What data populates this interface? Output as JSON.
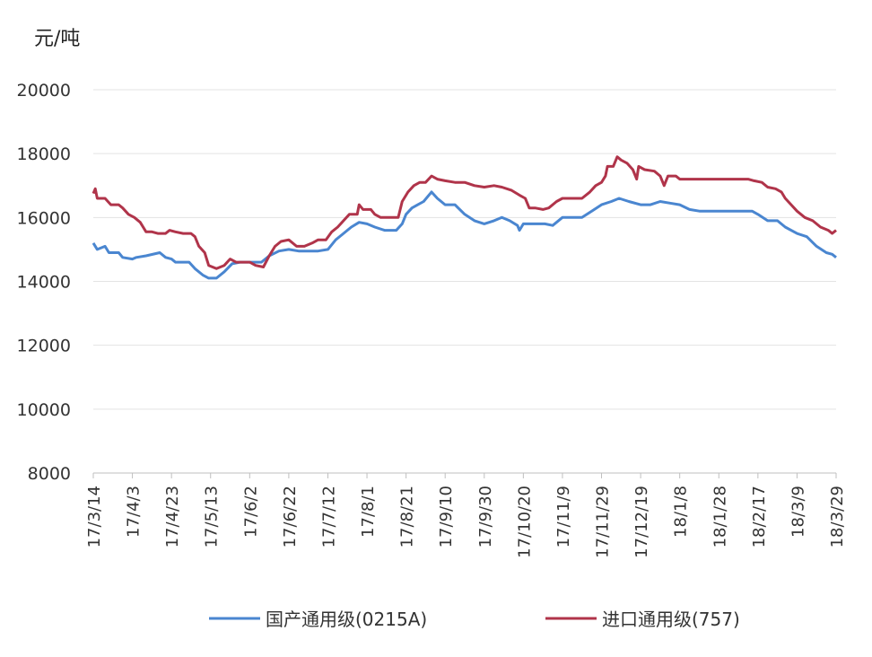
{
  "chart_data": {
    "type": "line",
    "unit_label": "元/吨",
    "ylim": [
      8000,
      20000
    ],
    "yticks": [
      8000,
      10000,
      12000,
      14000,
      16000,
      18000,
      20000
    ],
    "x_tick_labels": [
      "17/3/14",
      "17/4/3",
      "17/4/23",
      "17/5/13",
      "17/6/2",
      "17/6/22",
      "17/7/12",
      "17/8/1",
      "17/8/21",
      "17/9/10",
      "17/9/30",
      "17/10/20",
      "17/11/9",
      "17/11/29",
      "17/12/19",
      "18/1/8",
      "18/1/28",
      "18/2/17",
      "18/3/9",
      "18/3/29"
    ],
    "grid": "horizontal",
    "legend_position": "bottom",
    "series": [
      {
        "name": "国产通用级(0215A)",
        "color": "#4a86d0",
        "values": [
          [
            "17/3/14",
            15200
          ],
          [
            "17/3/16",
            15000
          ],
          [
            "17/3/20",
            15100
          ],
          [
            "17/3/22",
            14900
          ],
          [
            "17/3/27",
            14900
          ],
          [
            "17/3/29",
            14750
          ],
          [
            "17/4/3",
            14700
          ],
          [
            "17/4/5",
            14750
          ],
          [
            "17/4/10",
            14800
          ],
          [
            "17/4/17",
            14900
          ],
          [
            "17/4/20",
            14750
          ],
          [
            "17/4/23",
            14700
          ],
          [
            "17/4/25",
            14600
          ],
          [
            "17/4/29",
            14600
          ],
          [
            "17/5/2",
            14600
          ],
          [
            "17/5/5",
            14400
          ],
          [
            "17/5/9",
            14200
          ],
          [
            "17/5/12",
            14100
          ],
          [
            "17/5/16",
            14100
          ],
          [
            "17/5/20",
            14300
          ],
          [
            "17/5/24",
            14550
          ],
          [
            "17/5/28",
            14600
          ],
          [
            "17/6/2",
            14600
          ],
          [
            "17/6/8",
            14600
          ],
          [
            "17/6/12",
            14800
          ],
          [
            "17/6/17",
            14950
          ],
          [
            "17/6/22",
            15000
          ],
          [
            "17/6/27",
            14950
          ],
          [
            "17/7/2",
            14950
          ],
          [
            "17/7/7",
            14950
          ],
          [
            "17/7/12",
            15000
          ],
          [
            "17/7/16",
            15300
          ],
          [
            "17/7/20",
            15500
          ],
          [
            "17/7/24",
            15700
          ],
          [
            "17/7/28",
            15850
          ],
          [
            "17/8/1",
            15800
          ],
          [
            "17/8/5",
            15700
          ],
          [
            "17/8/10",
            15600
          ],
          [
            "17/8/16",
            15600
          ],
          [
            "17/8/19",
            15800
          ],
          [
            "17/8/21",
            16100
          ],
          [
            "17/8/24",
            16300
          ],
          [
            "17/8/27",
            16400
          ],
          [
            "17/8/30",
            16500
          ],
          [
            "17/9/3",
            16800
          ],
          [
            "17/9/6",
            16600
          ],
          [
            "17/9/10",
            16400
          ],
          [
            "17/9/15",
            16400
          ],
          [
            "17/9/20",
            16100
          ],
          [
            "17/9/25",
            15900
          ],
          [
            "17/9/30",
            15800
          ],
          [
            "17/10/5",
            15900
          ],
          [
            "17/10/9",
            16000
          ],
          [
            "17/10/13",
            15900
          ],
          [
            "17/10/17",
            15750
          ],
          [
            "17/10/18",
            15600
          ],
          [
            "17/10/20",
            15800
          ],
          [
            "17/10/25",
            15800
          ],
          [
            "17/10/31",
            15800
          ],
          [
            "17/11/4",
            15750
          ],
          [
            "17/11/9",
            16000
          ],
          [
            "17/11/14",
            16000
          ],
          [
            "17/11/19",
            16000
          ],
          [
            "17/11/24",
            16200
          ],
          [
            "17/11/29",
            16400
          ],
          [
            "17/12/4",
            16500
          ],
          [
            "17/12/8",
            16600
          ],
          [
            "17/12/13",
            16500
          ],
          [
            "17/12/19",
            16400
          ],
          [
            "17/12/24",
            16400
          ],
          [
            "17/12/29",
            16500
          ],
          [
            "18/1/3",
            16450
          ],
          [
            "18/1/8",
            16400
          ],
          [
            "18/1/13",
            16250
          ],
          [
            "18/1/18",
            16200
          ],
          [
            "18/1/28",
            16200
          ],
          [
            "18/2/7",
            16200
          ],
          [
            "18/2/14",
            16200
          ],
          [
            "18/2/17",
            16100
          ],
          [
            "18/2/22",
            15900
          ],
          [
            "18/2/27",
            15900
          ],
          [
            "18/3/3",
            15700
          ],
          [
            "18/3/9",
            15500
          ],
          [
            "18/3/14",
            15400
          ],
          [
            "18/3/19",
            15100
          ],
          [
            "18/3/24",
            14900
          ],
          [
            "18/3/27",
            14850
          ],
          [
            "18/3/29",
            14750
          ]
        ]
      },
      {
        "name": "进口通用级(757)",
        "color": "#b0344a",
        "values": [
          [
            "17/3/14",
            16750
          ],
          [
            "17/3/15",
            16900
          ],
          [
            "17/3/16",
            16600
          ],
          [
            "17/3/20",
            16600
          ],
          [
            "17/3/23",
            16400
          ],
          [
            "17/3/27",
            16400
          ],
          [
            "17/3/29",
            16300
          ],
          [
            "17/4/1",
            16100
          ],
          [
            "17/4/4",
            16000
          ],
          [
            "17/4/7",
            15850
          ],
          [
            "17/4/10",
            15550
          ],
          [
            "17/4/13",
            15550
          ],
          [
            "17/4/16",
            15500
          ],
          [
            "17/4/20",
            15500
          ],
          [
            "17/4/22",
            15600
          ],
          [
            "17/4/25",
            15550
          ],
          [
            "17/4/29",
            15500
          ],
          [
            "17/5/3",
            15500
          ],
          [
            "17/5/5",
            15400
          ],
          [
            "17/5/7",
            15100
          ],
          [
            "17/5/10",
            14900
          ],
          [
            "17/5/12",
            14500
          ],
          [
            "17/5/16",
            14400
          ],
          [
            "17/5/20",
            14500
          ],
          [
            "17/5/23",
            14700
          ],
          [
            "17/5/26",
            14600
          ],
          [
            "17/6/2",
            14600
          ],
          [
            "17/6/5",
            14500
          ],
          [
            "17/6/9",
            14450
          ],
          [
            "17/6/12",
            14800
          ],
          [
            "17/6/15",
            15100
          ],
          [
            "17/6/18",
            15250
          ],
          [
            "17/6/22",
            15300
          ],
          [
            "17/6/26",
            15100
          ],
          [
            "17/6/30",
            15100
          ],
          [
            "17/7/4",
            15200
          ],
          [
            "17/7/7",
            15300
          ],
          [
            "17/7/11",
            15300
          ],
          [
            "17/7/14",
            15550
          ],
          [
            "17/7/17",
            15700
          ],
          [
            "17/7/20",
            15900
          ],
          [
            "17/7/23",
            16100
          ],
          [
            "17/7/27",
            16100
          ],
          [
            "17/7/28",
            16400
          ],
          [
            "17/7/30",
            16250
          ],
          [
            "17/8/3",
            16250
          ],
          [
            "17/8/5",
            16100
          ],
          [
            "17/8/8",
            16000
          ],
          [
            "17/8/12",
            16000
          ],
          [
            "17/8/17",
            16000
          ],
          [
            "17/8/19",
            16500
          ],
          [
            "17/8/22",
            16800
          ],
          [
            "17/8/25",
            17000
          ],
          [
            "17/8/28",
            17100
          ],
          [
            "17/8/31",
            17100
          ],
          [
            "17/9/3",
            17300
          ],
          [
            "17/9/6",
            17200
          ],
          [
            "17/9/10",
            17150
          ],
          [
            "17/9/15",
            17100
          ],
          [
            "17/9/20",
            17100
          ],
          [
            "17/9/25",
            17000
          ],
          [
            "17/9/30",
            16950
          ],
          [
            "17/10/5",
            17000
          ],
          [
            "17/10/9",
            16950
          ],
          [
            "17/10/14",
            16850
          ],
          [
            "17/10/18",
            16700
          ],
          [
            "17/10/21",
            16600
          ],
          [
            "17/10/23",
            16300
          ],
          [
            "17/10/26",
            16300
          ],
          [
            "17/10/30",
            16250
          ],
          [
            "17/11/2",
            16300
          ],
          [
            "17/11/6",
            16500
          ],
          [
            "17/11/9",
            16600
          ],
          [
            "17/11/14",
            16600
          ],
          [
            "17/11/19",
            16600
          ],
          [
            "17/11/23",
            16800
          ],
          [
            "17/11/26",
            17000
          ],
          [
            "17/11/29",
            17100
          ],
          [
            "17/12/1",
            17300
          ],
          [
            "17/12/2",
            17600
          ],
          [
            "17/12/5",
            17600
          ],
          [
            "17/12/7",
            17900
          ],
          [
            "17/12/9",
            17800
          ],
          [
            "17/12/12",
            17700
          ],
          [
            "17/12/15",
            17500
          ],
          [
            "17/12/17",
            17200
          ],
          [
            "17/12/18",
            17600
          ],
          [
            "17/12/21",
            17500
          ],
          [
            "17/12/26",
            17450
          ],
          [
            "17/12/29",
            17300
          ],
          [
            "17/12/31",
            17000
          ],
          [
            "18/1/2",
            17300
          ],
          [
            "18/1/6",
            17300
          ],
          [
            "18/1/8",
            17200
          ],
          [
            "18/1/13",
            17200
          ],
          [
            "18/1/23",
            17200
          ],
          [
            "18/2/2",
            17200
          ],
          [
            "18/2/12",
            17200
          ],
          [
            "18/2/15",
            17150
          ],
          [
            "18/2/19",
            17100
          ],
          [
            "18/2/22",
            16950
          ],
          [
            "18/2/26",
            16900
          ],
          [
            "18/3/1",
            16800
          ],
          [
            "18/3/3",
            16600
          ],
          [
            "18/3/6",
            16400
          ],
          [
            "18/3/9",
            16200
          ],
          [
            "18/3/13",
            16000
          ],
          [
            "18/3/17",
            15900
          ],
          [
            "18/3/21",
            15700
          ],
          [
            "18/3/25",
            15600
          ],
          [
            "18/3/27",
            15500
          ],
          [
            "18/3/29",
            15600
          ]
        ]
      }
    ]
  }
}
